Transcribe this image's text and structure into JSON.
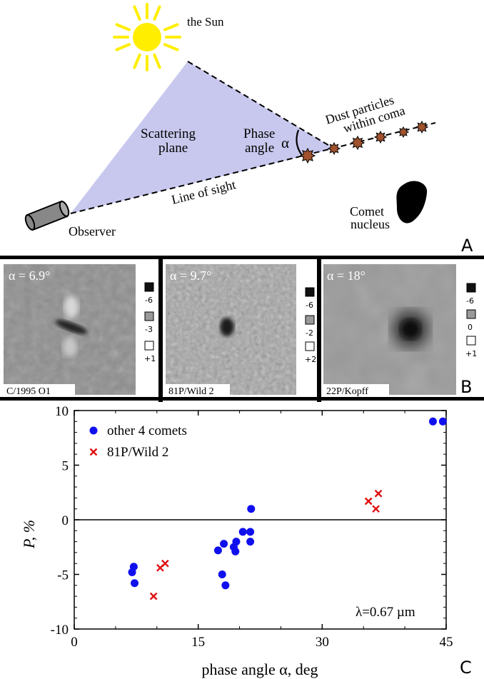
{
  "panel_a": {
    "sun_label": "the Sun",
    "scattering_plane_line1": "Scattering",
    "scattering_plane_line2": "plane",
    "phase_angle_line1": "Phase",
    "phase_angle_line2": "angle",
    "alpha_symbol": "α",
    "dust_line1": "Dust particles",
    "dust_line2": "within coma",
    "line_of_sight": "Line of sight",
    "observer": "Observer",
    "nucleus_line1": "Comet",
    "nucleus_line2": "nucleus",
    "panel_letter": "A",
    "colors": {
      "sun": "#ffee00",
      "plane": "#c8c8ee",
      "dust": "#a0522d"
    }
  },
  "panel_b": {
    "panel_letter": "B",
    "images": [
      {
        "alpha_label": "α = 6.9°",
        "comet_label": "C/1995 O1",
        "scale": [
          "-6",
          "-3",
          "+1"
        ]
      },
      {
        "alpha_label": "α = 9.7°",
        "comet_label": "81P/Wild 2",
        "scale": [
          "-6",
          "-2",
          "+2"
        ]
      },
      {
        "alpha_label": "α = 18°",
        "comet_label": "22P/Kopff",
        "scale": [
          "-6",
          "0",
          "+1"
        ]
      }
    ]
  },
  "panel_c": {
    "panel_letter": "C",
    "annotation": "λ=0.67 µm",
    "chart_data": {
      "type": "scatter",
      "xlabel": "phase angle α, deg",
      "ylabel": "P, %",
      "xlim": [
        0,
        45
      ],
      "ylim": [
        -10,
        10
      ],
      "x_ticks": [
        "0",
        "15",
        "30",
        "45"
      ],
      "y_ticks": [
        "10",
        "5",
        "0",
        "-5",
        "-10"
      ],
      "legend_position": "top-left",
      "series": [
        {
          "name": "other 4 comets",
          "marker": "circle",
          "color": "#1010ee",
          "points": [
            [
              7.0,
              -4.8
            ],
            [
              7.2,
              -4.3
            ],
            [
              7.3,
              -5.8
            ],
            [
              17.4,
              -2.8
            ],
            [
              17.9,
              -5.0
            ],
            [
              18.1,
              -2.2
            ],
            [
              18.3,
              -6.0
            ],
            [
              19.3,
              -2.5
            ],
            [
              19.5,
              -2.9
            ],
            [
              19.6,
              -2.0
            ],
            [
              20.4,
              -1.1
            ],
            [
              21.3,
              -1.1
            ],
            [
              21.3,
              -2.0
            ],
            [
              21.4,
              1.0
            ],
            [
              43.4,
              9.0
            ],
            [
              44.6,
              9.0
            ]
          ]
        },
        {
          "name": "81P/Wild 2",
          "marker": "x",
          "color": "#e01010",
          "points": [
            [
              9.6,
              -7.0
            ],
            [
              10.4,
              -4.4
            ],
            [
              11.0,
              -4.0
            ],
            [
              35.6,
              1.7
            ],
            [
              36.5,
              1.0
            ],
            [
              36.8,
              2.4
            ]
          ]
        }
      ]
    }
  }
}
